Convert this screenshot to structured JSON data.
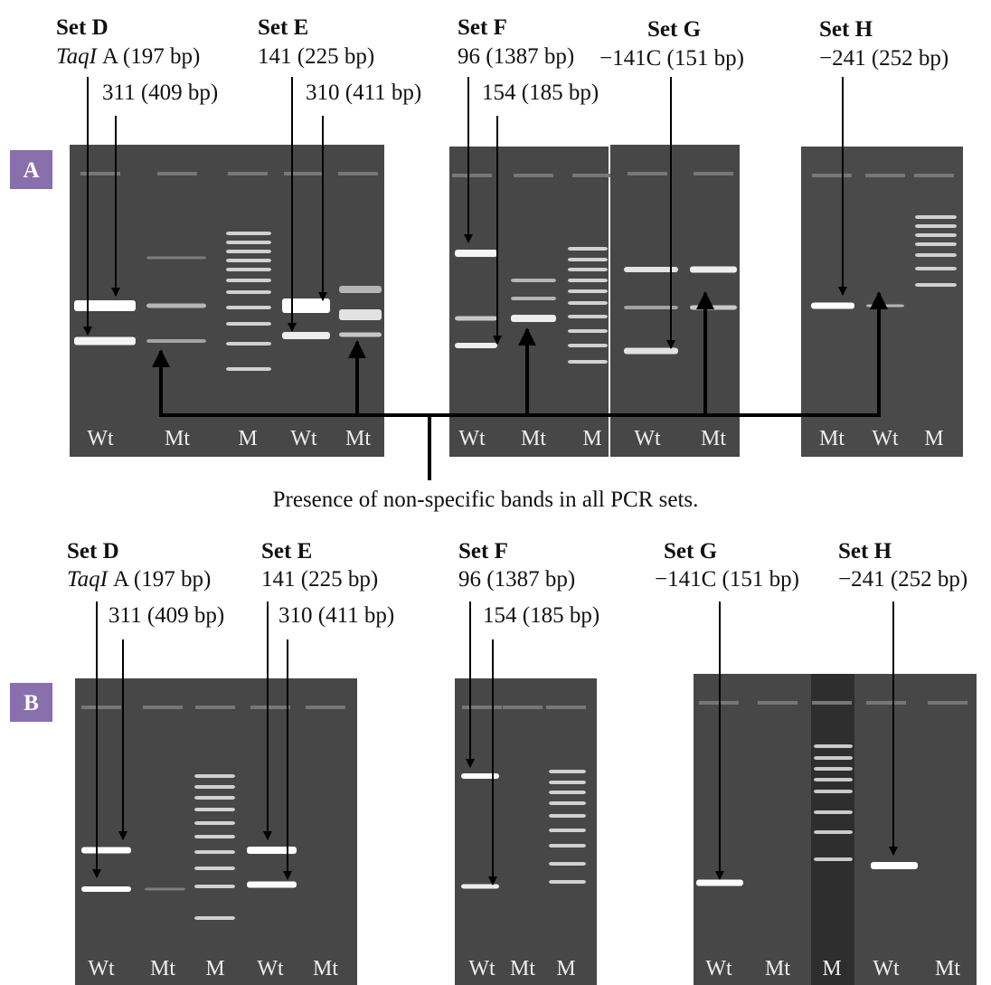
{
  "panels": [
    {
      "label": "A",
      "sets": [
        {
          "name": "Set D",
          "primers": [
            "A (197 bp)",
            "311 (409 bp)"
          ],
          "italic_prefix": "TaqI"
        },
        {
          "name": "Set E",
          "primers": [
            "141 (225 bp)",
            "310 (411 bp)"
          ]
        },
        {
          "name": "Set F",
          "primers": [
            "96 (1387 bp)",
            "154 (185 bp)"
          ]
        },
        {
          "name": "Set G",
          "primers": [
            "−141C (151 bp)"
          ]
        },
        {
          "name": "Set H",
          "primers": [
            "−241 (252 bp)"
          ]
        }
      ],
      "gels": [
        {
          "lanes": [
            "Wt",
            "Mt",
            "M",
            "Wt",
            "Mt"
          ]
        },
        {
          "lanes": [
            "Wt",
            "Mt",
            "M"
          ]
        },
        {
          "lanes": [
            "Wt",
            "Mt"
          ]
        },
        {
          "lanes": [
            "Mt",
            "Wt",
            "M"
          ]
        }
      ],
      "annotation": "Presence of non-specific bands in all PCR sets."
    },
    {
      "label": "B",
      "sets": [
        {
          "name": "Set D",
          "primers": [
            "A (197 bp)",
            "311 (409 bp)"
          ],
          "italic_prefix": "TaqI"
        },
        {
          "name": "Set E",
          "primers": [
            "141 (225 bp)",
            "310 (411 bp)"
          ]
        },
        {
          "name": "Set F",
          "primers": [
            "96 (1387 bp)",
            "154 (185 bp)"
          ]
        },
        {
          "name": "Set G",
          "primers": [
            "−141C (151 bp)"
          ]
        },
        {
          "name": "Set H",
          "primers": [
            "−241 (252 bp)"
          ]
        }
      ],
      "gels": [
        {
          "lanes": [
            "Wt",
            "Mt",
            "M",
            "Wt",
            "Mt"
          ]
        },
        {
          "lanes": [
            "Wt",
            "Mt",
            "M"
          ]
        },
        {
          "lanes": [
            "Wt",
            "Mt",
            "M",
            "Wt",
            "Mt"
          ]
        }
      ]
    }
  ]
}
